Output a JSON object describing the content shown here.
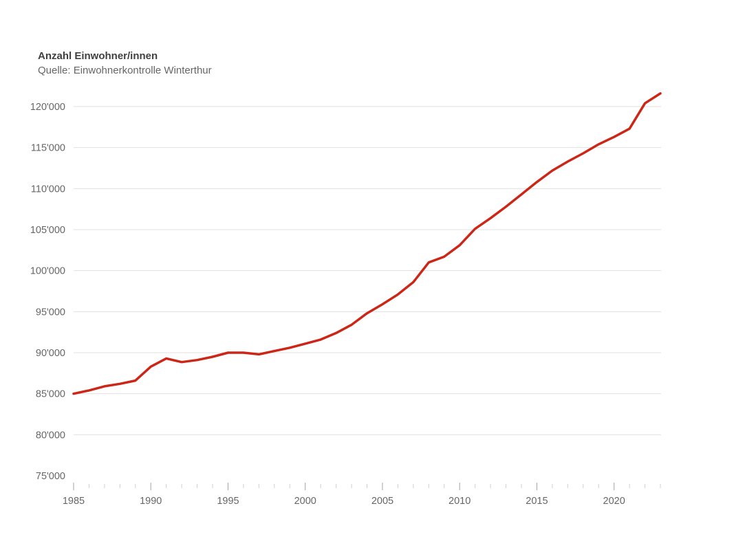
{
  "chart_data": {
    "type": "line",
    "title": "Anzahl Einwohner/innen",
    "subtitle": "Quelle: Einwohnerkontrolle Winterthur",
    "x": [
      1985,
      1986,
      1987,
      1988,
      1989,
      1990,
      1991,
      1992,
      1993,
      1994,
      1995,
      1996,
      1997,
      1998,
      1999,
      2000,
      2001,
      2002,
      2003,
      2004,
      2005,
      2006,
      2007,
      2008,
      2009,
      2010,
      2011,
      2012,
      2013,
      2014,
      2015,
      2016,
      2017,
      2018,
      2019,
      2020,
      2021,
      2022,
      2023
    ],
    "series": [
      {
        "name": "Anzahl Einwohner/innen",
        "color": "#cc2616",
        "values": [
          85000,
          85400,
          85900,
          86200,
          86600,
          88300,
          89300,
          88850,
          89100,
          89500,
          90000,
          90000,
          89800,
          90200,
          90600,
          91100,
          91600,
          92400,
          93400,
          94800,
          95900,
          97100,
          98600,
          101000,
          101700,
          103100,
          105100,
          106400,
          107800,
          109300,
          110800,
          112200,
          113300,
          114300,
          115400,
          116300,
          117300,
          120400,
          121600
        ]
      }
    ],
    "xlabel": "",
    "ylabel": "",
    "ylim": [
      75000,
      120000
    ],
    "ytick_step": 5000,
    "ytick_labels": [
      "75'000",
      "80'000",
      "85'000",
      "90'000",
      "95'000",
      "100'000",
      "105'000",
      "110'000",
      "115'000",
      "120'000"
    ],
    "xtick_major": [
      1985,
      1990,
      1995,
      2000,
      2005,
      2010,
      2015,
      2020
    ],
    "xtick_major_labels": [
      "1985",
      "1990",
      "1995",
      "2000",
      "2005",
      "2010",
      "2015",
      "2020"
    ],
    "grid": "horizontal gridlines only; no gridline at y-axis minimum",
    "legend": "none",
    "colors": {
      "line": "#cc2616",
      "gridline": "#e0e0e0",
      "tick_minor": "#cfcfcf",
      "tick_major": "#a3a3a3",
      "axis_label": "#666666",
      "title": "#404040",
      "subtitle": "#666666",
      "background": "#ffffff"
    }
  }
}
